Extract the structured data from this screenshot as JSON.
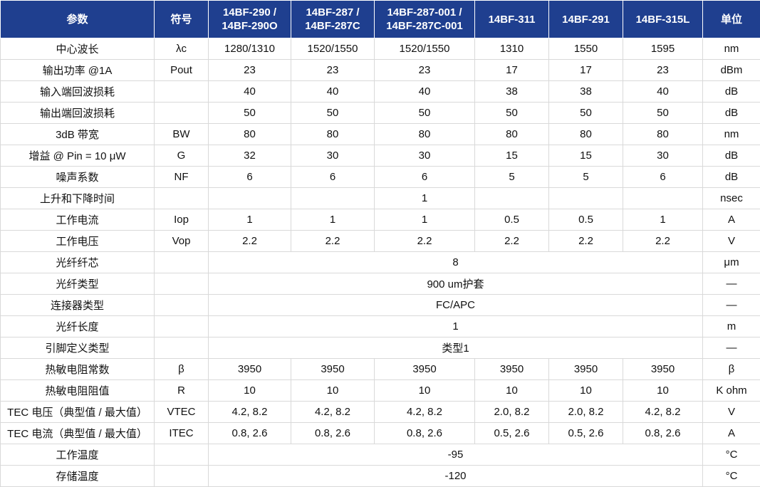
{
  "table": {
    "headers": [
      "参数",
      "符号",
      "14BF-290 /\n14BF-290O",
      "14BF-287 /\n14BF-287C",
      "14BF-287-001 /\n14BF-287C-001",
      "14BF-311",
      "14BF-291",
      "14BF-315L",
      "单位"
    ],
    "rows": [
      {
        "param": "中心波长",
        "symbol": "λc",
        "values": [
          "1280/1310",
          "1520/1550",
          "1520/1550",
          "1310",
          "1550",
          "1595"
        ],
        "unit": "nm"
      },
      {
        "param": "输出功率 @1A",
        "symbol": "Pout",
        "values": [
          "23",
          "23",
          "23",
          "17",
          "17",
          "23"
        ],
        "unit": "dBm"
      },
      {
        "param": "输入端回波损耗",
        "symbol": "",
        "values": [
          "40",
          "40",
          "40",
          "38",
          "38",
          "40"
        ],
        "unit": "dB"
      },
      {
        "param": "输出端回波损耗",
        "symbol": "",
        "values": [
          "50",
          "50",
          "50",
          "50",
          "50",
          "50"
        ],
        "unit": "dB"
      },
      {
        "param": "3dB 带宽",
        "symbol": "BW",
        "values": [
          "80",
          "80",
          "80",
          "80",
          "80",
          "80"
        ],
        "unit": "nm"
      },
      {
        "param": "增益 @ Pin = 10 μW",
        "symbol": "G",
        "values": [
          "32",
          "30",
          "30",
          "15",
          "15",
          "30"
        ],
        "unit": "dB"
      },
      {
        "param": "噪声系数",
        "symbol": "NF",
        "values": [
          "6",
          "6",
          "6",
          "5",
          "5",
          "6"
        ],
        "unit": "dB"
      },
      {
        "param": "上升和下降时间",
        "symbol": "",
        "values": [
          "",
          "",
          "1",
          "",
          "",
          ""
        ],
        "unit": "nsec"
      },
      {
        "param": "工作电流",
        "symbol": "Iop",
        "values": [
          "1",
          "1",
          "1",
          "0.5",
          "0.5",
          "1"
        ],
        "unit": "A"
      },
      {
        "param": "工作电压",
        "symbol": "Vop",
        "values": [
          "2.2",
          "2.2",
          "2.2",
          "2.2",
          "2.2",
          "2.2"
        ],
        "unit": "V"
      },
      {
        "param": "光纤纤芯",
        "symbol": "",
        "merged": "8",
        "unit": "μm"
      },
      {
        "param": "光纤类型",
        "symbol": "",
        "merged": "900 um护套",
        "unit": "—"
      },
      {
        "param": "连接器类型",
        "symbol": "",
        "merged": "FC/APC",
        "unit": "—"
      },
      {
        "param": "光纤长度",
        "symbol": "",
        "merged": "1",
        "unit": "m"
      },
      {
        "param": "引脚定义类型",
        "symbol": "",
        "merged": "类型1",
        "unit": "—"
      },
      {
        "param": "热敏电阻常数",
        "symbol": "β",
        "values": [
          "3950",
          "3950",
          "3950",
          "3950",
          "3950",
          "3950"
        ],
        "unit": "β"
      },
      {
        "param": "热敏电阻阻值",
        "symbol": "R",
        "values": [
          "10",
          "10",
          "10",
          "10",
          "10",
          "10"
        ],
        "unit": "K ohm"
      },
      {
        "param": "TEC 电压（典型值 / 最大值）",
        "symbol": "VTEC",
        "values": [
          "4.2, 8.2",
          "4.2, 8.2",
          "4.2, 8.2",
          "2.0, 8.2",
          "2.0, 8.2",
          "4.2, 8.2"
        ],
        "unit": "V"
      },
      {
        "param": "TEC 电流（典型值 / 最大值）",
        "symbol": "ITEC",
        "values": [
          "0.8, 2.6",
          "0.8, 2.6",
          "0.8, 2.6",
          "0.5, 2.6",
          "0.5, 2.6",
          "0.8, 2.6"
        ],
        "unit": "A"
      },
      {
        "param": "工作温度",
        "symbol": "",
        "merged": "-95",
        "unit": "°C"
      },
      {
        "param": "存储温度",
        "symbol": "",
        "merged": "-120",
        "unit": "°C"
      }
    ]
  },
  "colors": {
    "header_bg": "#1f3f8f",
    "header_text": "#ffffff",
    "grid": "#d9d9d9"
  }
}
